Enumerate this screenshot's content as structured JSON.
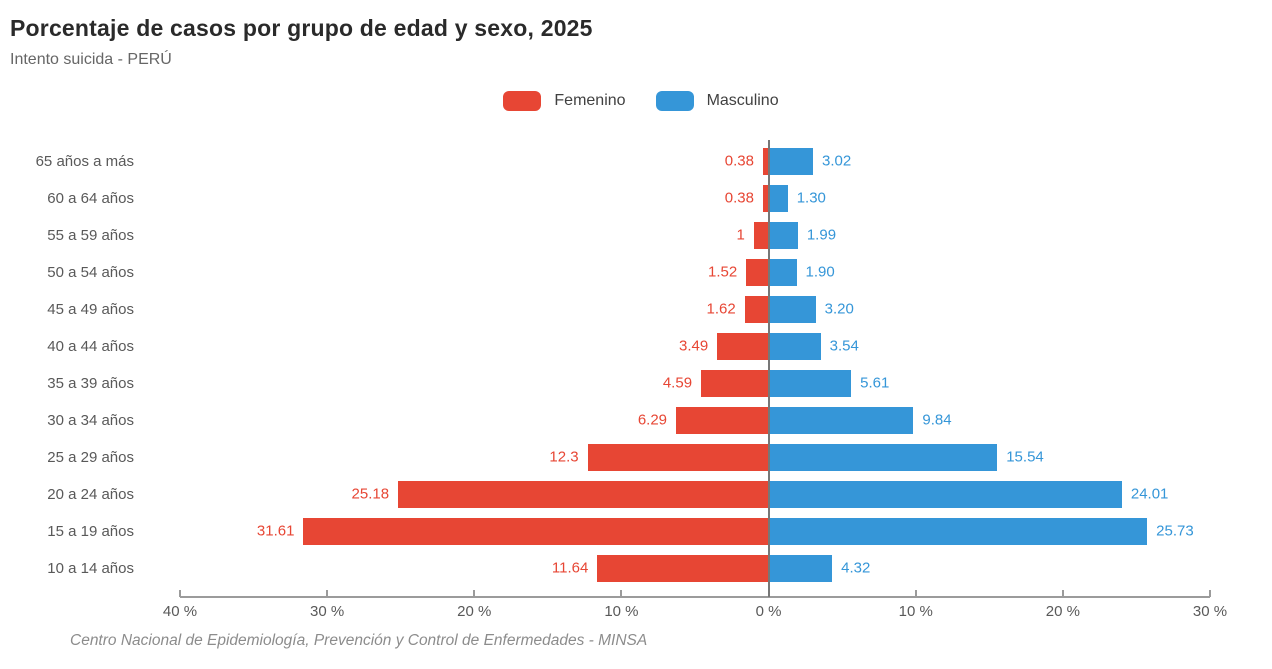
{
  "header": {
    "title": "Porcentaje de casos por grupo de edad y sexo, 2025",
    "subtitle": "Intento suicida - PERÚ"
  },
  "legend": {
    "items": [
      {
        "label": "Femenino",
        "color": "#e74634"
      },
      {
        "label": "Masculino",
        "color": "#3596d8"
      }
    ]
  },
  "chart_data": {
    "type": "bar",
    "variant": "population-pyramid",
    "title": "Porcentaje de casos por grupo de edad y sexo, 2025",
    "subtitle": "Intento suicida - PERÚ",
    "grid": false,
    "legend_position": "top-center",
    "categories": [
      "65 años a más",
      "60 a 64 años",
      "55 a 59 años",
      "50 a 54 años",
      "45 a 49 años",
      "40 a 44 años",
      "35 a 39 años",
      "30 a 34 años",
      "25 a 29 años",
      "20 a 24 años",
      "15 a 19 años",
      "10 a 14 años"
    ],
    "series": [
      {
        "name": "Femenino",
        "color": "#e74634",
        "direction": "left",
        "values": [
          0.38,
          0.38,
          1,
          1.52,
          1.62,
          3.49,
          4.59,
          6.29,
          12.3,
          25.18,
          31.61,
          11.64
        ],
        "labels": [
          "0.38",
          "0.38",
          "1",
          "1.52",
          "1.62",
          "3.49",
          "4.59",
          "6.29",
          "12.3",
          "25.18",
          "31.61",
          "11.64"
        ]
      },
      {
        "name": "Masculino",
        "color": "#3596d8",
        "direction": "right",
        "values": [
          3.02,
          1.3,
          1.99,
          1.9,
          3.2,
          3.54,
          5.61,
          9.84,
          15.54,
          24.01,
          25.73,
          4.32
        ],
        "labels": [
          "3.02",
          "1.30",
          "1.99",
          "1.90",
          "3.20",
          "3.54",
          "5.61",
          "9.84",
          "15.54",
          "24.01",
          "25.73",
          "4.32"
        ]
      }
    ],
    "x_axis": {
      "tick_labels": [
        "40 %",
        "30 %",
        "20 %",
        "10 %",
        "0 %",
        "10 %",
        "20 %",
        "30 %"
      ],
      "left_max": 40,
      "right_max": 30,
      "unit": "%"
    }
  },
  "footer": {
    "source": "Centro Nacional de Epidemiología, Prevención y Control de Enfermedades - MINSA"
  }
}
